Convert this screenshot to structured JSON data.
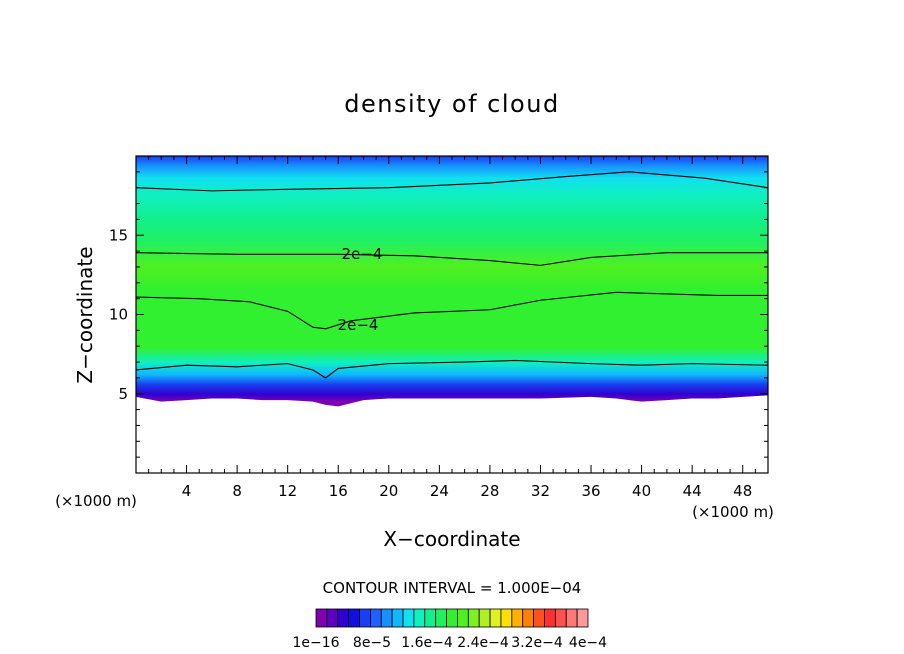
{
  "chart_data": {
    "type": "heatmap",
    "title": "density of cloud",
    "xlabel": "X−coordinate",
    "ylabel": "Z−coordinate",
    "x_unit_left": "(×1000 m)",
    "x_unit_right": "(×1000 m)",
    "xlim": [
      0,
      50
    ],
    "ylim": [
      0,
      20
    ],
    "xticks": [
      4,
      8,
      12,
      16,
      20,
      24,
      28,
      32,
      36,
      40,
      44,
      48
    ],
    "xtick_labels": [
      "4",
      "8",
      "12",
      "16",
      "20",
      "24",
      "28",
      "32",
      "36",
      "40",
      "44",
      "48"
    ],
    "yticks": [
      5,
      10,
      15
    ],
    "ytick_labels": [
      "5",
      "10",
      "15"
    ],
    "contour_interval_text": "CONTOUR INTERVAL = 1.000E−04",
    "contour_labels": [
      "2e−4",
      "2e−4"
    ],
    "colorbar": {
      "colors": [
        "#8000b0",
        "#5a00c0",
        "#3000d0",
        "#1010e0",
        "#1840f0",
        "#2060ff",
        "#1890ff",
        "#10b8ff",
        "#10e0f0",
        "#10f0c0",
        "#10f090",
        "#20f060",
        "#30f030",
        "#50f020",
        "#80f020",
        "#b0f020",
        "#e0f020",
        "#ffe000",
        "#ffb000",
        "#ff8000",
        "#ff5020",
        "#ff3030",
        "#ff5050",
        "#ff7878",
        "#ff9898"
      ],
      "labels": [
        "1e−16",
        "8e−5",
        "1.6e−4",
        "2.4e−4",
        "3.2e−4",
        "4e−4"
      ]
    },
    "contour_lines": [
      {
        "name": "",
        "points": [
          [
            0,
            18.0
          ],
          [
            6,
            17.8
          ],
          [
            12,
            17.9
          ],
          [
            20,
            18.0
          ],
          [
            28,
            18.3
          ],
          [
            34,
            18.7
          ],
          [
            39,
            19.0
          ],
          [
            45,
            18.6
          ],
          [
            50,
            18.0
          ]
        ]
      },
      {
        "name": "",
        "points": [
          [
            0,
            13.9
          ],
          [
            8,
            13.8
          ],
          [
            16,
            13.8
          ],
          [
            22,
            13.7
          ],
          [
            28,
            13.4
          ],
          [
            32,
            13.1
          ],
          [
            36,
            13.6
          ],
          [
            42,
            13.9
          ],
          [
            50,
            13.9
          ]
        ]
      },
      {
        "name": "",
        "points": [
          [
            0,
            11.1
          ],
          [
            5,
            11.0
          ],
          [
            9,
            10.8
          ],
          [
            12,
            10.2
          ],
          [
            14,
            9.2
          ],
          [
            15,
            9.1
          ],
          [
            17,
            9.6
          ],
          [
            22,
            10.1
          ],
          [
            28,
            10.3
          ],
          [
            32,
            10.9
          ],
          [
            38,
            11.4
          ],
          [
            42,
            11.3
          ],
          [
            46,
            11.2
          ],
          [
            50,
            11.2
          ]
        ]
      },
      {
        "name": "",
        "points": [
          [
            0,
            6.5
          ],
          [
            4,
            6.8
          ],
          [
            8,
            6.7
          ],
          [
            12,
            6.9
          ],
          [
            14,
            6.5
          ],
          [
            15,
            6.0
          ],
          [
            16,
            6.6
          ],
          [
            20,
            6.9
          ],
          [
            26,
            7.0
          ],
          [
            30,
            7.1
          ],
          [
            36,
            6.9
          ],
          [
            40,
            6.8
          ],
          [
            44,
            6.9
          ],
          [
            50,
            6.8
          ]
        ]
      }
    ],
    "cloud_base": {
      "x": [
        0,
        2,
        4,
        6,
        8,
        10,
        12,
        14,
        15,
        16,
        18,
        20,
        24,
        28,
        32,
        36,
        38,
        40,
        42,
        44,
        46,
        48,
        50
      ],
      "z": [
        4.8,
        4.5,
        4.6,
        4.7,
        4.7,
        4.6,
        4.6,
        4.5,
        4.3,
        4.2,
        4.6,
        4.7,
        4.7,
        4.7,
        4.7,
        4.8,
        4.7,
        4.5,
        4.6,
        4.7,
        4.7,
        4.8,
        4.9
      ]
    },
    "grid": false
  }
}
